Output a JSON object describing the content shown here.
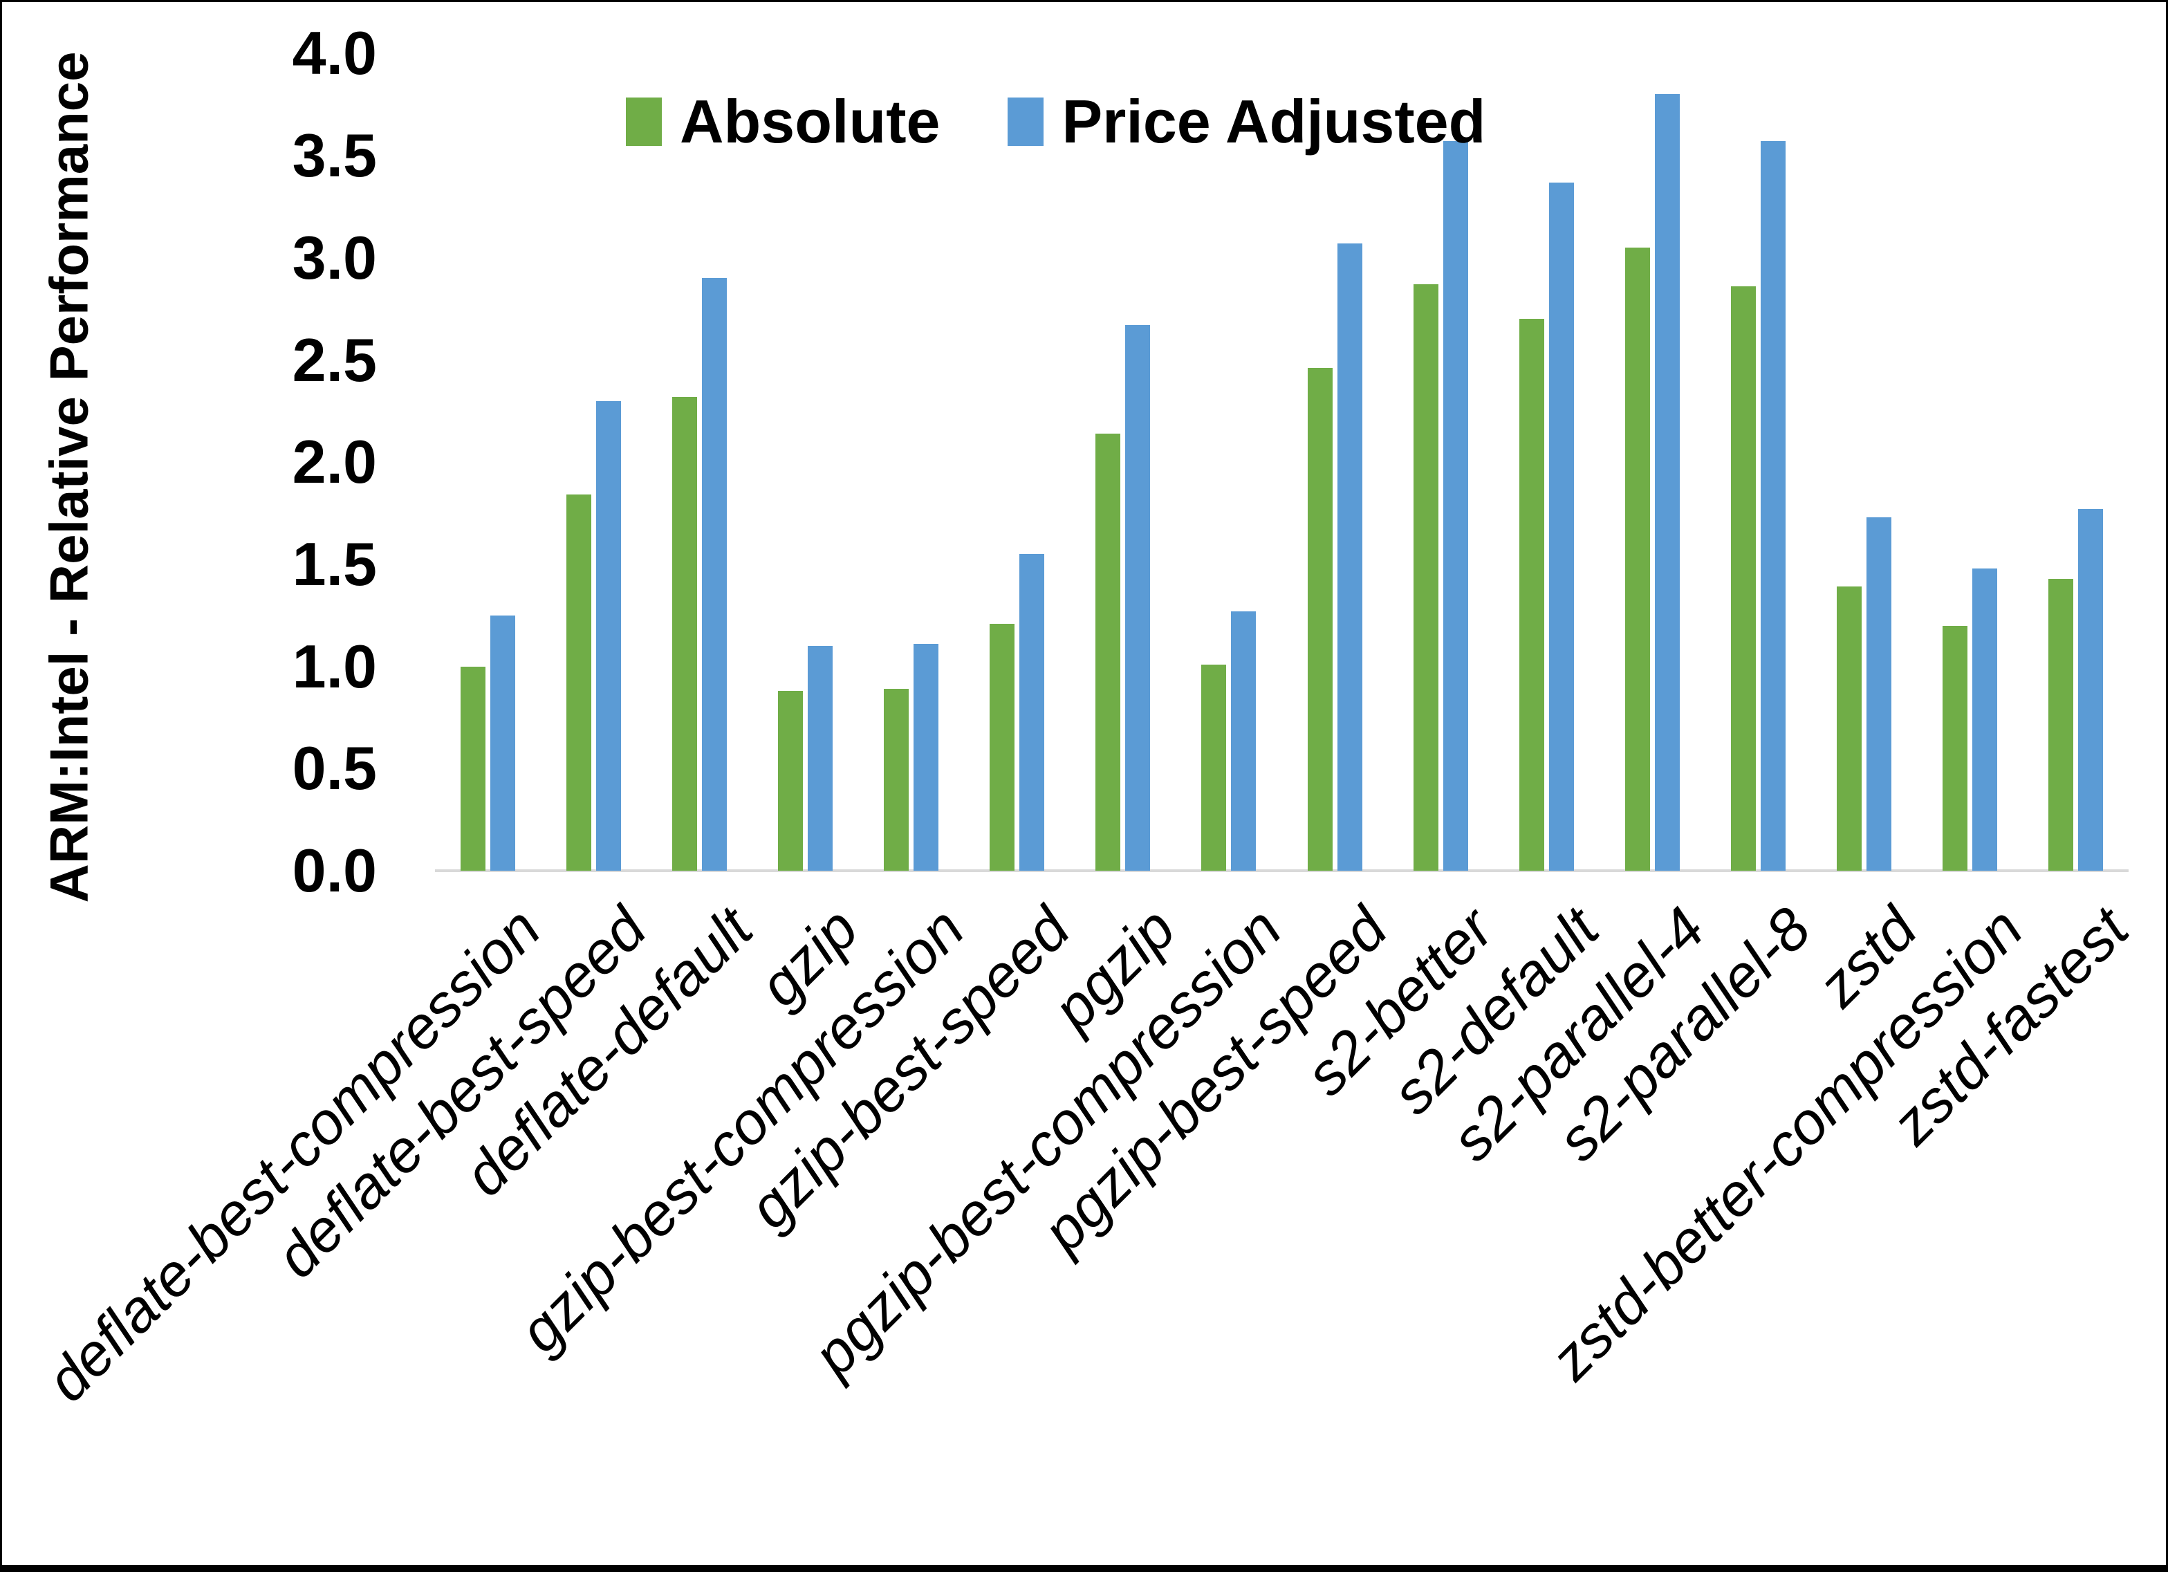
{
  "chart_data": {
    "type": "bar",
    "title": "",
    "xlabel": "",
    "ylabel": "ARM:Intel - Relative Performance",
    "ylim": [
      0.0,
      4.0
    ],
    "ytick_step": 0.5,
    "ytick_format_decimals": 1,
    "grid": false,
    "legend_position": "top-center",
    "categories": [
      "deflate-best-compression",
      "deflate-best-speed",
      "deflate-default",
      "gzip",
      "gzip-best-compression",
      "gzip-best-speed",
      "pgzip",
      "pgzip-best-compression",
      "pgzip-best-speed",
      "s2-better",
      "s2-default",
      "s2-parallel-4",
      "s2-parallel-8",
      "zstd",
      "zstd-better-compression",
      "zstd-fastest"
    ],
    "series": [
      {
        "name": "Absolute",
        "color": "#70AD47",
        "values": [
          1.0,
          1.84,
          2.32,
          0.88,
          0.89,
          1.21,
          2.14,
          1.01,
          2.46,
          2.87,
          2.7,
          3.05,
          2.86,
          1.39,
          1.2,
          1.43
        ]
      },
      {
        "name": "Price Adjusted",
        "color": "#5B9BD5",
        "values": [
          1.25,
          2.3,
          2.9,
          1.1,
          1.11,
          1.55,
          2.67,
          1.27,
          3.07,
          3.57,
          3.37,
          3.8,
          3.57,
          1.73,
          1.48,
          1.77
        ]
      }
    ]
  },
  "colors": {
    "background": "#FFFFFF",
    "axis_line": "#D9D9D9",
    "text": "#000000",
    "frame": "#000000"
  }
}
